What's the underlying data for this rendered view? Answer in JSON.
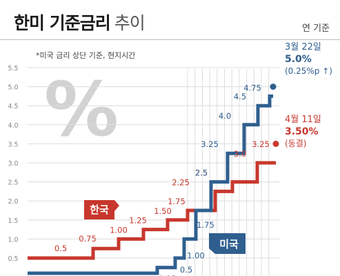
{
  "header": {
    "title_bold": "한미 기준금리",
    "title_light": "추이",
    "unit": "연 기준"
  },
  "note": "*미국 금리 상단 기준, 현지시간",
  "colors": {
    "us": "#2f5f8f",
    "korea": "#c8372d",
    "grid": "#dcdcdc",
    "axis_text": "#888888"
  },
  "chart_data": {
    "type": "line",
    "step": true,
    "title": "",
    "xlabel": "",
    "ylabel": "",
    "ylim": [
      0,
      5.5
    ],
    "yticks": [
      0.5,
      1.0,
      1.5,
      2.0,
      2.5,
      3.0,
      3.5,
      4.0,
      4.5,
      5.0,
      5.5
    ],
    "ytick_labels": [
      "0.5",
      "1.0",
      "1.5",
      "2.0",
      "2.5",
      "3.0",
      "3.5",
      "4.0",
      "4.5",
      "5.0",
      "5.5"
    ],
    "grid": true,
    "series": [
      {
        "name": "한국",
        "color": "#c8372d",
        "values": [
          0.5,
          0.75,
          1.0,
          1.25,
          1.5,
          1.75,
          2.25,
          2.5,
          3.0,
          3.25,
          3.5
        ],
        "labels": [
          "0.5",
          "0.75",
          "1.00",
          "1.25",
          "1.50",
          "1.75",
          "2.25",
          "2.5",
          "3.0",
          "3.25",
          ""
        ]
      },
      {
        "name": "미국",
        "color": "#2f5f8f",
        "values": [
          0.25,
          0.5,
          1.0,
          1.75,
          2.5,
          3.25,
          4.0,
          4.5,
          4.75,
          5.0
        ],
        "labels": [
          "0.25",
          "0.5",
          "1.00",
          "1.75",
          "2.5",
          "3.25",
          "4.0",
          "4.5",
          "4.75",
          ""
        ]
      }
    ],
    "annotations": [
      {
        "series": "미국",
        "date": "3월 22일",
        "value": "5.0%",
        "note": "(0.25%p ↑)"
      },
      {
        "series": "한국",
        "date": "4월 11일",
        "value": "3.50%",
        "note": "(동결)"
      }
    ],
    "legend": [
      "한국",
      "미국"
    ]
  }
}
